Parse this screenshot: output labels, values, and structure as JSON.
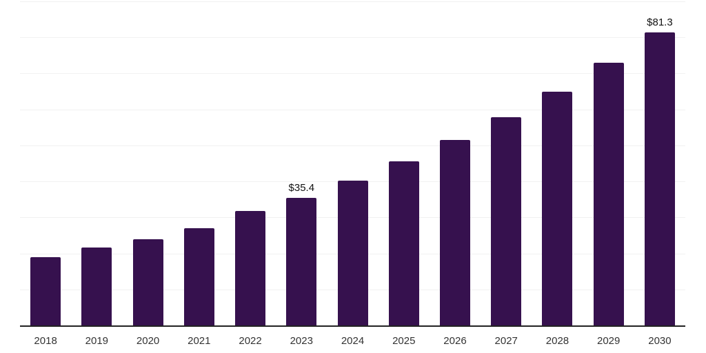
{
  "chart_data": {
    "type": "bar",
    "title": "",
    "xlabel": "",
    "ylabel": "",
    "categories": [
      "2018",
      "2019",
      "2020",
      "2021",
      "2022",
      "2023",
      "2024",
      "2025",
      "2026",
      "2027",
      "2028",
      "2029",
      "2030"
    ],
    "values": [
      18.9,
      21.6,
      23.9,
      27.0,
      31.7,
      35.4,
      40.3,
      45.5,
      51.5,
      57.8,
      65.0,
      73.0,
      81.3
    ],
    "bar_labels": {
      "2023": "$35.4",
      "2030": "$81.3"
    },
    "ylim": [
      0,
      90
    ],
    "gridline_step": 10,
    "grid": true,
    "legend": "none",
    "y_axis_tick_labels": "none",
    "colors": {
      "bar": "#36114E",
      "axis_line": "#222222",
      "gridline": "#f1f1f1",
      "tick_label": "#333333",
      "data_label": "#111111",
      "background": "#ffffff"
    }
  }
}
